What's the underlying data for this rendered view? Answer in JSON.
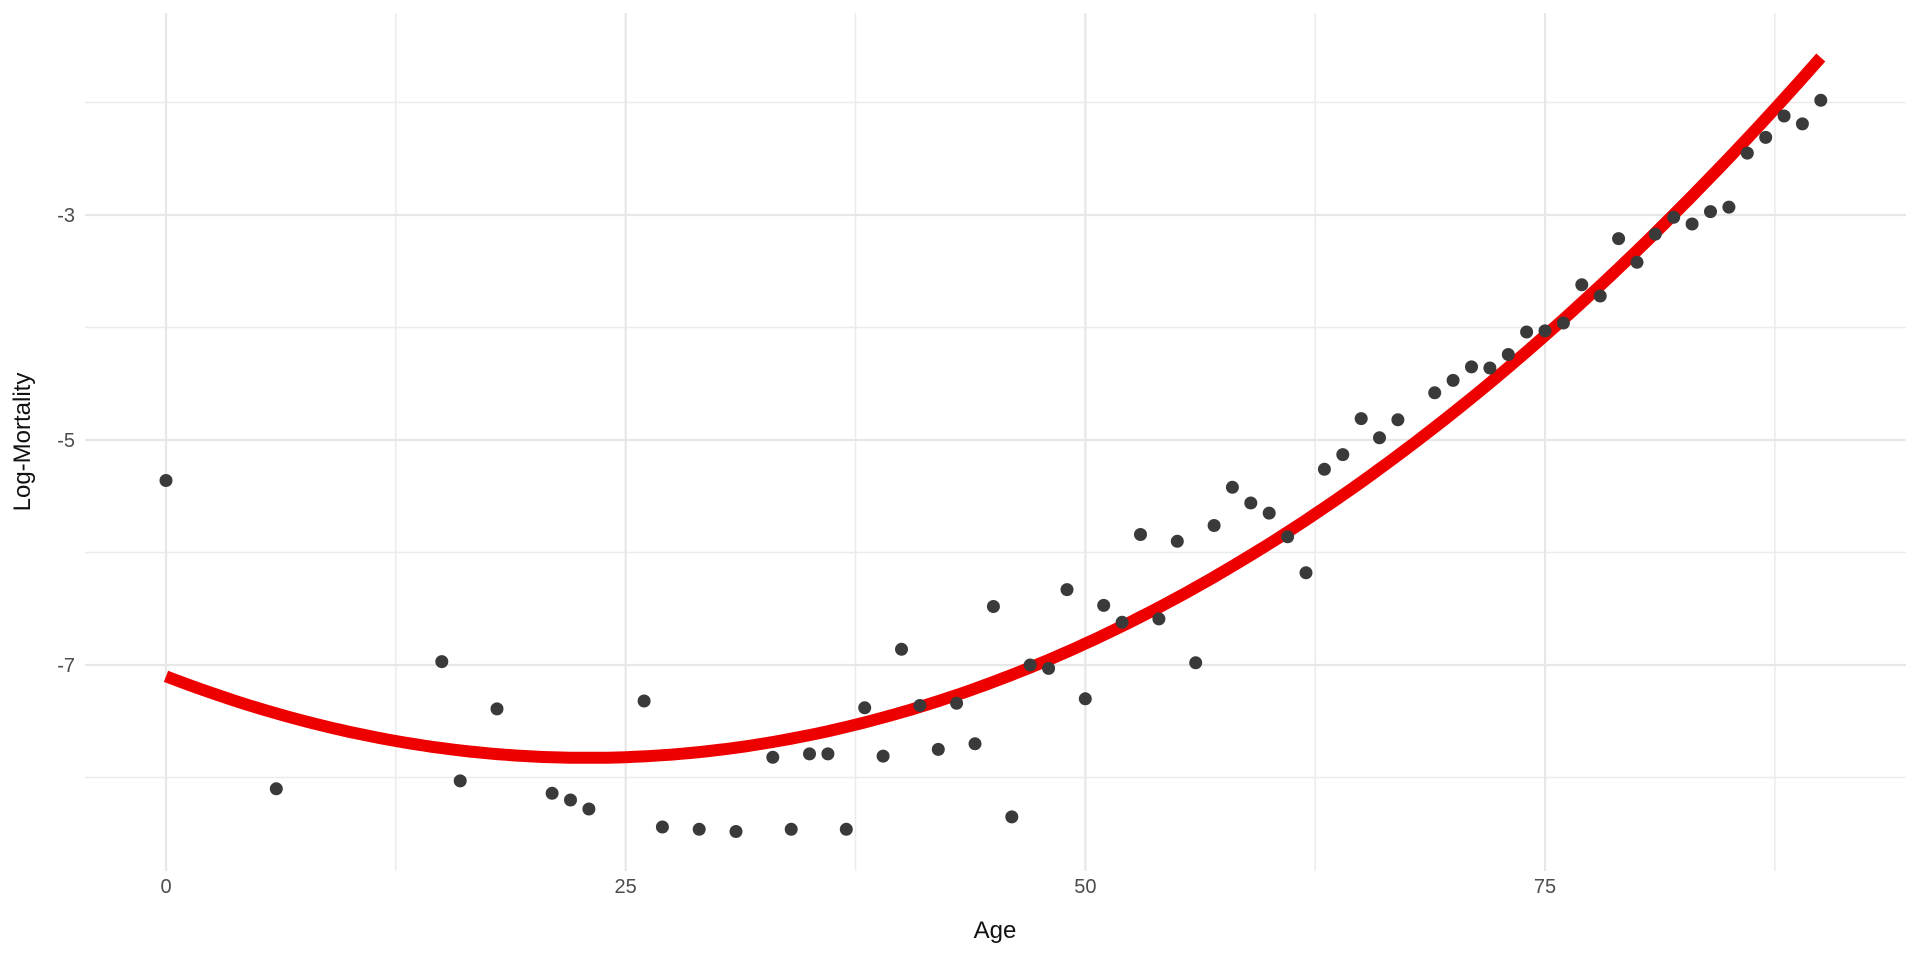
{
  "chart_data": {
    "type": "scatter",
    "title": "",
    "xlabel": "Age",
    "ylabel": "Log-Mortality",
    "x_major_ticks": [
      0,
      25,
      50,
      75
    ],
    "x_major_tick_labels": [
      "0",
      "25",
      "50",
      "75"
    ],
    "x_minor_ticks": [
      12.5,
      37.5,
      62.5,
      87.5
    ],
    "y_major_ticks": [
      -3,
      -5,
      -7
    ],
    "y_major_tick_labels": [
      "-3",
      "-5",
      "-7"
    ],
    "y_minor_ticks": [
      -2,
      -4,
      -6,
      -8
    ],
    "xlim": [
      -4.4,
      94.6
    ],
    "ylim": [
      -8.85,
      -1.2
    ],
    "grid": "on",
    "legend": "none",
    "points_series_name": "observed-log-mortality",
    "points": [
      [
        0,
        -5.36
      ],
      [
        6,
        -8.1
      ],
      [
        15,
        -6.97
      ],
      [
        16,
        -8.03
      ],
      [
        18,
        -7.39
      ],
      [
        21,
        -8.14
      ],
      [
        22,
        -8.2
      ],
      [
        23,
        -8.28
      ],
      [
        26,
        -7.32
      ],
      [
        27,
        -8.44
      ],
      [
        29,
        -8.46
      ],
      [
        31,
        -8.48
      ],
      [
        33,
        -7.82
      ],
      [
        34,
        -8.46
      ],
      [
        35,
        -7.79
      ],
      [
        36,
        -7.79
      ],
      [
        37,
        -8.46
      ],
      [
        38,
        -7.38
      ],
      [
        39,
        -7.81
      ],
      [
        40,
        -6.86
      ],
      [
        41,
        -7.36
      ],
      [
        42,
        -7.75
      ],
      [
        43,
        -7.34
      ],
      [
        44,
        -7.7
      ],
      [
        45,
        -6.48
      ],
      [
        46,
        -8.35
      ],
      [
        47,
        -7.0
      ],
      [
        48,
        -7.03
      ],
      [
        49,
        -6.33
      ],
      [
        50,
        -7.3
      ],
      [
        51,
        -6.47
      ],
      [
        52,
        -6.62
      ],
      [
        53,
        -5.84
      ],
      [
        54,
        -6.59
      ],
      [
        55,
        -5.9
      ],
      [
        56,
        -6.98
      ],
      [
        57,
        -5.76
      ],
      [
        58,
        -5.42
      ],
      [
        59,
        -5.56
      ],
      [
        60,
        -5.65
      ],
      [
        61,
        -5.86
      ],
      [
        62,
        -6.18
      ],
      [
        63,
        -5.26
      ],
      [
        64,
        -5.13
      ],
      [
        65,
        -4.81
      ],
      [
        66,
        -4.98
      ],
      [
        67,
        -4.82
      ],
      [
        69,
        -4.58
      ],
      [
        70,
        -4.47
      ],
      [
        71,
        -4.35
      ],
      [
        72,
        -4.36
      ],
      [
        73,
        -4.24
      ],
      [
        74,
        -4.04
      ],
      [
        75,
        -4.03
      ],
      [
        76,
        -3.96
      ],
      [
        77,
        -3.62
      ],
      [
        78,
        -3.72
      ],
      [
        79,
        -3.21
      ],
      [
        80,
        -3.42
      ],
      [
        81,
        -3.17
      ],
      [
        82,
        -3.02
      ],
      [
        83,
        -3.08
      ],
      [
        84,
        -2.97
      ],
      [
        85,
        -2.93
      ],
      [
        86,
        -2.45
      ],
      [
        87,
        -2.31
      ],
      [
        88,
        -2.12
      ],
      [
        89,
        -2.19
      ],
      [
        90,
        -1.98
      ]
    ],
    "fit_curve": {
      "name": "quadratic-fit",
      "type": "quadratic",
      "a": 0.0013828,
      "b": -0.06334,
      "c": -7.1,
      "domain": [
        0,
        90
      ],
      "sample_values": {
        "0": -7.1,
        "23": -7.83,
        "25": -7.82,
        "37.5": -7.53,
        "50": -6.81,
        "62.5": -5.66,
        "75": -4.07,
        "90": -1.6
      }
    },
    "colors": {
      "point": "#3a3a3a",
      "curve": "#ee0000",
      "grid_major": "#e7e7e7",
      "grid_minor": "#ebebeb",
      "tick_label": "#4d4d4d",
      "axis_title": "#111111",
      "background": "#ffffff"
    }
  }
}
